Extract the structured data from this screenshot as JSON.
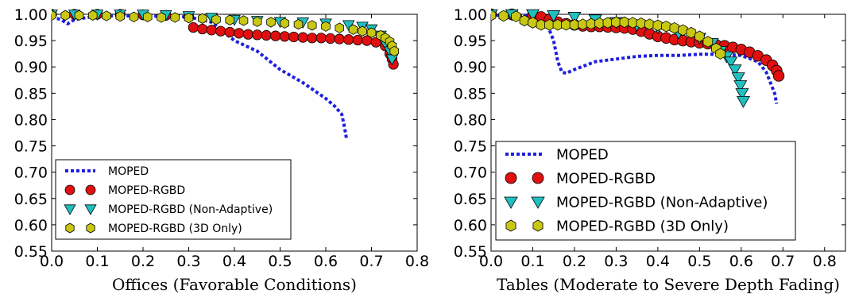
{
  "chart_data": [
    {
      "type": "scatter",
      "xlabel": "Offices (Favorable Conditions)",
      "ylabel": "",
      "xlim": [
        0.0,
        0.8
      ],
      "ylim": [
        0.55,
        1.0
      ],
      "xticks": [
        "0.0",
        "0.1",
        "0.2",
        "0.3",
        "0.4",
        "0.5",
        "0.6",
        "0.7",
        "0.8"
      ],
      "yticks": [
        "0.55",
        "0.60",
        "0.65",
        "0.70",
        "0.75",
        "0.80",
        "0.85",
        "0.90",
        "0.95",
        "1.00"
      ],
      "grid": false,
      "legend_position": "lower-left",
      "series": [
        {
          "name": "MOPED",
          "style": "dotted-line",
          "color": "#1f1fe0",
          "points": [
            [
              0.0,
              0.995
            ],
            [
              0.02,
              0.99
            ],
            [
              0.035,
              0.982
            ],
            [
              0.05,
              0.99
            ],
            [
              0.1,
              0.997
            ],
            [
              0.2,
              0.997
            ],
            [
              0.3,
              0.995
            ],
            [
              0.35,
              0.985
            ],
            [
              0.4,
              0.95
            ],
            [
              0.45,
              0.93
            ],
            [
              0.5,
              0.895
            ],
            [
              0.55,
              0.87
            ],
            [
              0.6,
              0.84
            ],
            [
              0.62,
              0.825
            ],
            [
              0.635,
              0.81
            ],
            [
              0.64,
              0.79
            ],
            [
              0.645,
              0.765
            ]
          ]
        },
        {
          "name": "MOPED-RGBD",
          "style": "circle-markers",
          "color": "#e01010",
          "points": [
            [
              0.0,
              1.0
            ],
            [
              0.05,
              1.0
            ],
            [
              0.1,
              1.0
            ],
            [
              0.15,
              1.0
            ],
            [
              0.2,
              0.999
            ],
            [
              0.25,
              0.998
            ],
            [
              0.3,
              0.995
            ],
            [
              0.31,
              0.975
            ],
            [
              0.33,
              0.972
            ],
            [
              0.35,
              0.97
            ],
            [
              0.37,
              0.968
            ],
            [
              0.39,
              0.966
            ],
            [
              0.41,
              0.964
            ],
            [
              0.43,
              0.962
            ],
            [
              0.45,
              0.961
            ],
            [
              0.47,
              0.96
            ],
            [
              0.49,
              0.959
            ],
            [
              0.51,
              0.958
            ],
            [
              0.53,
              0.957
            ],
            [
              0.55,
              0.956
            ],
            [
              0.57,
              0.955
            ],
            [
              0.59,
              0.955
            ],
            [
              0.61,
              0.954
            ],
            [
              0.63,
              0.953
            ],
            [
              0.65,
              0.952
            ],
            [
              0.67,
              0.951
            ],
            [
              0.69,
              0.95
            ],
            [
              0.71,
              0.947
            ],
            [
              0.73,
              0.94
            ],
            [
              0.74,
              0.925
            ],
            [
              0.745,
              0.915
            ],
            [
              0.748,
              0.905
            ]
          ]
        },
        {
          "name": "MOPED-RGBD (Non-Adaptive)",
          "style": "triangle-down-markers",
          "color": "#20c0c0",
          "points": [
            [
              0.0,
              1.0
            ],
            [
              0.05,
              1.0
            ],
            [
              0.1,
              1.0
            ],
            [
              0.15,
              1.0
            ],
            [
              0.2,
              1.0
            ],
            [
              0.25,
              0.999
            ],
            [
              0.3,
              0.997
            ],
            [
              0.35,
              0.994
            ],
            [
              0.4,
              0.99
            ],
            [
              0.45,
              0.988
            ],
            [
              0.5,
              0.986
            ],
            [
              0.55,
              0.985
            ],
            [
              0.6,
              0.983
            ],
            [
              0.65,
              0.98
            ],
            [
              0.68,
              0.977
            ],
            [
              0.7,
              0.972
            ],
            [
              0.72,
              0.96
            ],
            [
              0.73,
              0.945
            ],
            [
              0.74,
              0.93
            ],
            [
              0.745,
              0.915
            ]
          ]
        },
        {
          "name": "MOPED-RGBD (3D Only)",
          "style": "hexagon-markers",
          "color": "#c8c814",
          "points": [
            [
              0.0,
              0.998
            ],
            [
              0.03,
              0.998
            ],
            [
              0.06,
              0.998
            ],
            [
              0.09,
              0.998
            ],
            [
              0.12,
              0.997
            ],
            [
              0.15,
              0.996
            ],
            [
              0.18,
              0.995
            ],
            [
              0.21,
              0.995
            ],
            [
              0.24,
              0.994
            ],
            [
              0.27,
              0.994
            ],
            [
              0.3,
              0.993
            ],
            [
              0.33,
              0.992
            ],
            [
              0.36,
              0.99
            ],
            [
              0.39,
              0.989
            ],
            [
              0.42,
              0.988
            ],
            [
              0.45,
              0.986
            ],
            [
              0.48,
              0.985
            ],
            [
              0.51,
              0.983
            ],
            [
              0.54,
              0.981
            ],
            [
              0.57,
              0.979
            ],
            [
              0.6,
              0.977
            ],
            [
              0.63,
              0.974
            ],
            [
              0.66,
              0.971
            ],
            [
              0.68,
              0.968
            ],
            [
              0.7,
              0.965
            ],
            [
              0.72,
              0.96
            ],
            [
              0.73,
              0.955
            ],
            [
              0.74,
              0.948
            ],
            [
              0.745,
              0.94
            ],
            [
              0.75,
              0.93
            ]
          ]
        }
      ]
    },
    {
      "type": "scatter",
      "xlabel": "Tables (Moderate to Severe Depth Fading)",
      "ylabel": "",
      "xlim": [
        0.0,
        0.85
      ],
      "ylim": [
        0.55,
        1.0
      ],
      "xticks": [
        "0.0",
        "0.1",
        "0.2",
        "0.3",
        "0.4",
        "0.5",
        "0.6",
        "0.7",
        "0.8"
      ],
      "yticks": [
        "0.55",
        "0.60",
        "0.65",
        "0.70",
        "0.75",
        "0.80",
        "0.85",
        "0.90",
        "0.95",
        "1.00"
      ],
      "grid": false,
      "legend_position": "lower-left",
      "series": [
        {
          "name": "MOPED",
          "style": "dotted-line",
          "color": "#1f1fe0",
          "points": [
            [
              0.0,
              0.998
            ],
            [
              0.1,
              0.998
            ],
            [
              0.13,
              0.99
            ],
            [
              0.15,
              0.95
            ],
            [
              0.16,
              0.91
            ],
            [
              0.17,
              0.89
            ],
            [
              0.18,
              0.888
            ],
            [
              0.2,
              0.895
            ],
            [
              0.25,
              0.91
            ],
            [
              0.3,
              0.915
            ],
            [
              0.35,
              0.92
            ],
            [
              0.4,
              0.922
            ],
            [
              0.45,
              0.922
            ],
            [
              0.5,
              0.924
            ],
            [
              0.55,
              0.924
            ],
            [
              0.6,
              0.922
            ],
            [
              0.64,
              0.91
            ],
            [
              0.66,
              0.89
            ],
            [
              0.67,
              0.87
            ],
            [
              0.68,
              0.85
            ],
            [
              0.685,
              0.83
            ]
          ]
        },
        {
          "name": "MOPED-RGBD",
          "style": "circle-markers",
          "color": "#e01010",
          "points": [
            [
              0.0,
              1.0
            ],
            [
              0.05,
              1.0
            ],
            [
              0.1,
              0.998
            ],
            [
              0.12,
              0.995
            ],
            [
              0.14,
              0.99
            ],
            [
              0.16,
              0.985
            ],
            [
              0.18,
              0.982
            ],
            [
              0.2,
              0.98
            ],
            [
              0.22,
              0.978
            ],
            [
              0.24,
              0.977
            ],
            [
              0.26,
              0.977
            ],
            [
              0.28,
              0.976
            ],
            [
              0.3,
              0.975
            ],
            [
              0.32,
              0.974
            ],
            [
              0.34,
              0.972
            ],
            [
              0.36,
              0.968
            ],
            [
              0.38,
              0.963
            ],
            [
              0.4,
              0.958
            ],
            [
              0.42,
              0.955
            ],
            [
              0.44,
              0.952
            ],
            [
              0.46,
              0.95
            ],
            [
              0.48,
              0.948
            ],
            [
              0.5,
              0.946
            ],
            [
              0.52,
              0.944
            ],
            [
              0.54,
              0.942
            ],
            [
              0.56,
              0.94
            ],
            [
              0.58,
              0.937
            ],
            [
              0.6,
              0.933
            ],
            [
              0.62,
              0.928
            ],
            [
              0.64,
              0.921
            ],
            [
              0.66,
              0.913
            ],
            [
              0.675,
              0.903
            ],
            [
              0.685,
              0.893
            ],
            [
              0.69,
              0.883
            ]
          ]
        },
        {
          "name": "MOPED-RGBD (Non-Adaptive)",
          "style": "triangle-down-markers",
          "color": "#20c0c0",
          "points": [
            [
              0.0,
              1.0
            ],
            [
              0.05,
              1.0
            ],
            [
              0.1,
              1.0
            ],
            [
              0.15,
              0.998
            ],
            [
              0.2,
              0.995
            ],
            [
              0.25,
              0.99
            ],
            [
              0.3,
              0.985
            ],
            [
              0.35,
              0.98
            ],
            [
              0.4,
              0.975
            ],
            [
              0.45,
              0.965
            ],
            [
              0.5,
              0.955
            ],
            [
              0.53,
              0.945
            ],
            [
              0.55,
              0.93
            ],
            [
              0.565,
              0.92
            ],
            [
              0.575,
              0.91
            ],
            [
              0.585,
              0.895
            ],
            [
              0.593,
              0.88
            ],
            [
              0.598,
              0.865
            ],
            [
              0.602,
              0.85
            ],
            [
              0.605,
              0.835
            ]
          ]
        },
        {
          "name": "MOPED-RGBD (3D Only)",
          "style": "hexagon-markers",
          "color": "#c8c814",
          "points": [
            [
              0.0,
              0.998
            ],
            [
              0.03,
              0.997
            ],
            [
              0.06,
              0.996
            ],
            [
              0.08,
              0.988
            ],
            [
              0.1,
              0.984
            ],
            [
              0.12,
              0.98
            ],
            [
              0.14,
              0.98
            ],
            [
              0.16,
              0.98
            ],
            [
              0.18,
              0.98
            ],
            [
              0.2,
              0.98
            ],
            [
              0.22,
              0.981
            ],
            [
              0.24,
              0.982
            ],
            [
              0.26,
              0.983
            ],
            [
              0.28,
              0.984
            ],
            [
              0.3,
              0.985
            ],
            [
              0.32,
              0.985
            ],
            [
              0.34,
              0.984
            ],
            [
              0.36,
              0.983
            ],
            [
              0.38,
              0.981
            ],
            [
              0.4,
              0.979
            ],
            [
              0.42,
              0.977
            ],
            [
              0.44,
              0.974
            ],
            [
              0.46,
              0.97
            ],
            [
              0.48,
              0.965
            ],
            [
              0.5,
              0.958
            ],
            [
              0.52,
              0.948
            ],
            [
              0.54,
              0.935
            ],
            [
              0.55,
              0.925
            ]
          ]
        }
      ]
    }
  ]
}
